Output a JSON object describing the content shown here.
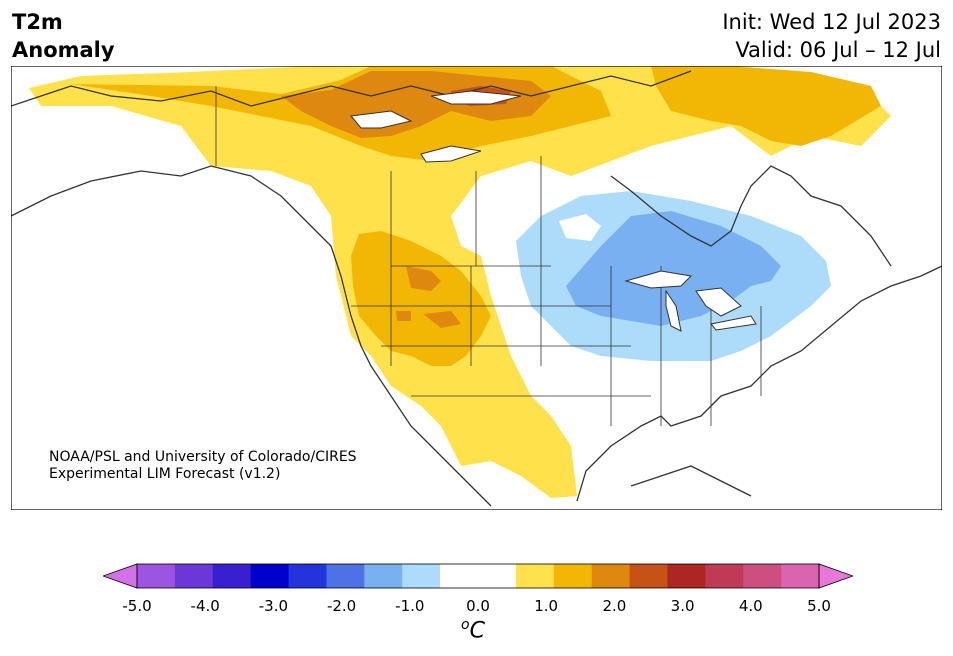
{
  "header": {
    "title_line1": "T2m",
    "title_line2": "Anomaly",
    "init": "Init: Wed 12 Jul 2023",
    "valid": "Valid: 06 Jul – 12 Jul"
  },
  "credit": {
    "line1": "NOAA/PSL and University of Colorado/CIRES",
    "line2": "Experimental LIM Forecast (v1.2)"
  },
  "colorbar": {
    "colors": [
      "#d670e8",
      "#9b55e0",
      "#6a38d8",
      "#3a1fd0",
      "#0000cc",
      "#2334dc",
      "#4e72e6",
      "#78b0f2",
      "#acdcf9",
      "#ffffff",
      "#ffffff",
      "#ffe14b",
      "#f2b705",
      "#de8810",
      "#c65218",
      "#ad2623",
      "#be3a55",
      "#cc4f80",
      "#db64b0",
      "#e878d8"
    ],
    "ticks": [
      "-5.0",
      "-4.0",
      "-3.0",
      "-2.0",
      "-1.0",
      "0.0",
      "1.0",
      "2.0",
      "3.0",
      "4.0",
      "5.0"
    ],
    "unit_symbol": "o",
    "unit_letter": "C"
  },
  "map": {
    "regions": [
      "North America"
    ],
    "anomaly_colors": {
      "light_yellow": "#ffe14b",
      "yellow_orange": "#f2b705",
      "orange": "#de8810",
      "dark_orange": "#c65218",
      "light_blue": "#acdcf9",
      "blue": "#78b0f2"
    }
  }
}
